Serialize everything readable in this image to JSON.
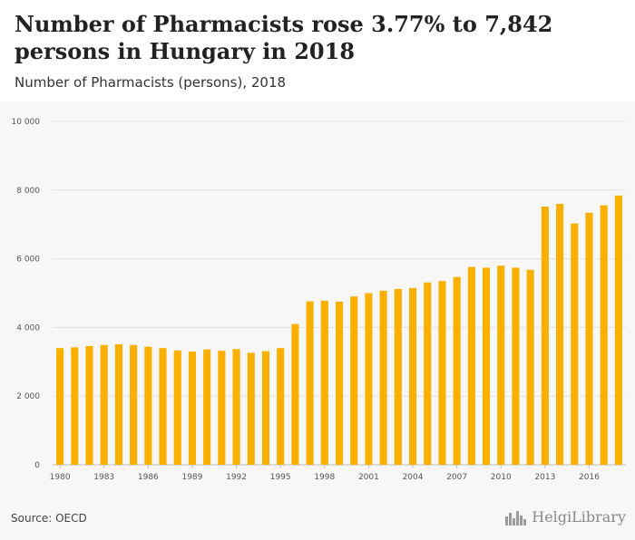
{
  "header": {
    "title": "Number of Pharmacists rose 3.77% to 7,842 persons in Hungary in 2018",
    "subtitle": "Number of Pharmacists (persons), 2018"
  },
  "footer": {
    "source": "Source: OECD",
    "brand": "HelgiLibrary",
    "brand_icon": "city-skyline-icon"
  },
  "colors": {
    "bar": "#f9b000",
    "grid": "#e2e2e2",
    "plot_background": "#f7f7f7"
  },
  "chart_data": {
    "type": "bar",
    "title": "Number of Pharmacists rose 3.77% to 7,842 persons in Hungary in 2018",
    "subtitle": "Number of Pharmacists (persons), 2018",
    "xlabel": "",
    "ylabel": "",
    "ylim": [
      0,
      10000
    ],
    "yticks": [
      0,
      2000,
      4000,
      6000,
      8000,
      10000
    ],
    "ytick_labels": [
      "0",
      "2 000",
      "4 000",
      "6 000",
      "8 000",
      "10 000"
    ],
    "xtick_labels": [
      "1980",
      "1983",
      "1986",
      "1989",
      "1992",
      "1995",
      "1998",
      "2001",
      "2004",
      "2007",
      "2010",
      "2013",
      "2016"
    ],
    "grid": true,
    "categories": [
      "1980",
      "1981",
      "1982",
      "1983",
      "1984",
      "1985",
      "1986",
      "1987",
      "1988",
      "1989",
      "1990",
      "1991",
      "1992",
      "1993",
      "1994",
      "1995",
      "1996",
      "1997",
      "1998",
      "1999",
      "2000",
      "2001",
      "2002",
      "2003",
      "2004",
      "2005",
      "2006",
      "2007",
      "2008",
      "2009",
      "2010",
      "2011",
      "2012",
      "2013",
      "2014",
      "2015",
      "2016",
      "2017",
      "2018"
    ],
    "values": [
      3400,
      3420,
      3460,
      3490,
      3510,
      3490,
      3440,
      3400,
      3330,
      3300,
      3360,
      3320,
      3370,
      3260,
      3310,
      3400,
      4100,
      4760,
      4780,
      4750,
      4900,
      5000,
      5070,
      5120,
      5150,
      5310,
      5350,
      5470,
      5760,
      5740,
      5800,
      5740,
      5680,
      7520,
      7600,
      7030,
      7340,
      7557,
      7842
    ]
  }
}
